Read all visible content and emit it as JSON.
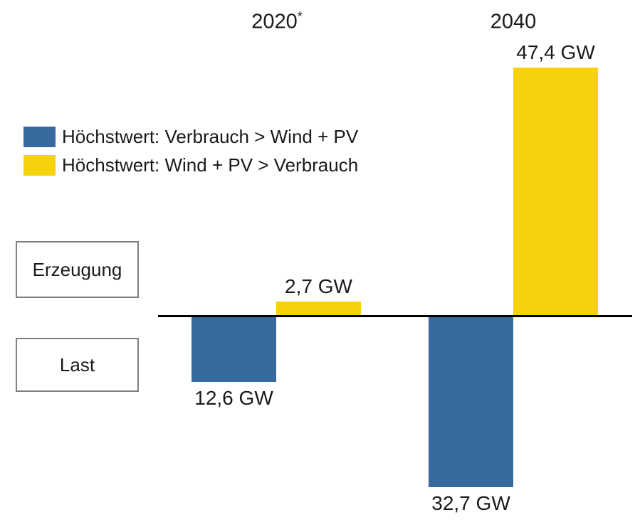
{
  "header": {
    "years": [
      {
        "text": "2020",
        "sup": "*"
      },
      {
        "text": "2040",
        "sup": ""
      }
    ]
  },
  "legend": {
    "items": [
      {
        "label": "Höchstwert: Verbrauch > Wind + PV",
        "color": "#36699E"
      },
      {
        "label": "Höchstwert: Wind + PV > Verbrauch",
        "color": "#F5D20B"
      }
    ]
  },
  "row_labels": [
    {
      "label": "Erzeugung"
    },
    {
      "label": "Last"
    }
  ],
  "chart_data": {
    "type": "bar",
    "unit": "GW",
    "title": "",
    "categories": [
      "2020*",
      "2040"
    ],
    "series": [
      {
        "name": "Höchstwert: Verbrauch > Wind + PV",
        "color": "#36699E",
        "values": [
          -12.6,
          -32.7
        ],
        "data_labels": [
          "12,6 GW",
          "32,7 GW"
        ]
      },
      {
        "name": "Höchstwert: Wind + PV > Verbrauch",
        "color": "#F5D20B",
        "values": [
          2.7,
          47.4
        ],
        "data_labels": [
          "2,7 GW",
          "47,4 GW"
        ]
      }
    ],
    "baseline": 0,
    "positive_region_label": "Erzeugung",
    "negative_region_label": "Last",
    "legend_position": "middle-left",
    "grid": false,
    "axis_color": "#000000"
  }
}
